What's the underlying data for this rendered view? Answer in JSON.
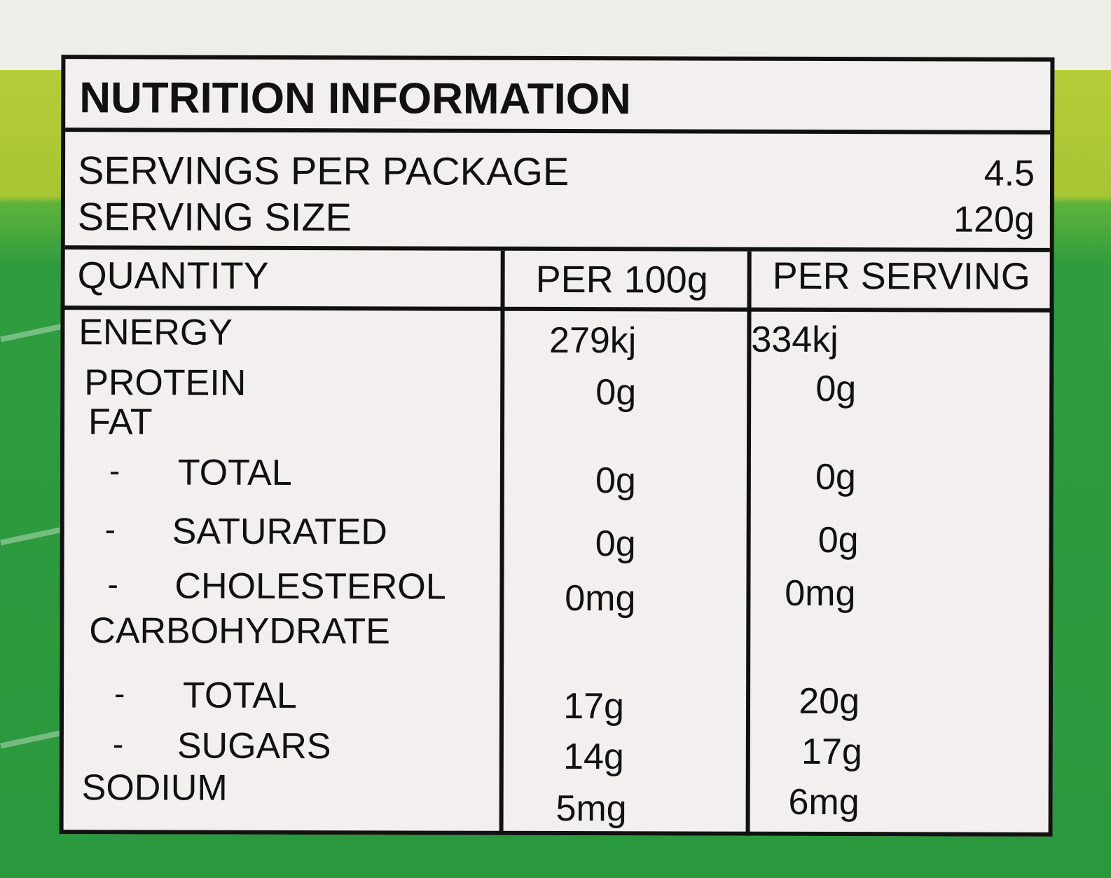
{
  "label": {
    "title": "NUTRITION INFORMATION",
    "servings_per_package_label": "SERVINGS PER PACKAGE",
    "servings_per_package_value": "4.5",
    "serving_size_label": "SERVING SIZE",
    "serving_size_value": "120g",
    "headers": {
      "quantity": "QUANTITY",
      "per_100g": "PER 100g",
      "per_serving": "PER SERVING"
    },
    "rows": [
      {
        "name": "ENERGY",
        "dash": "",
        "per_100g": "279kj",
        "per_serving": "334kj"
      },
      {
        "name": "PROTEIN",
        "dash": "",
        "per_100g": "0g",
        "per_serving": "0g"
      },
      {
        "name": "FAT",
        "dash": "",
        "per_100g": "",
        "per_serving": ""
      },
      {
        "name": "TOTAL",
        "dash": "-",
        "per_100g": "0g",
        "per_serving": "0g"
      },
      {
        "name": "SATURATED",
        "dash": "-",
        "per_100g": "0g",
        "per_serving": "0g"
      },
      {
        "name": "CHOLESTEROL",
        "dash": "-",
        "per_100g": "0mg",
        "per_serving": "0mg"
      },
      {
        "name": "CARBOHYDRATE",
        "dash": "",
        "per_100g": "",
        "per_serving": ""
      },
      {
        "name": "TOTAL",
        "dash": "-",
        "per_100g": "17g",
        "per_serving": "20g"
      },
      {
        "name": "SUGARS",
        "dash": "-",
        "per_100g": "14g",
        "per_serving": "17g"
      },
      {
        "name": "SODIUM",
        "dash": "",
        "per_100g": "5mg",
        "per_serving": "6mg"
      }
    ]
  }
}
